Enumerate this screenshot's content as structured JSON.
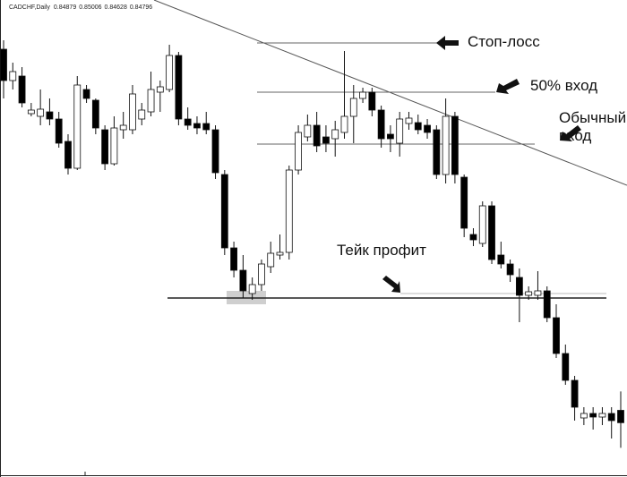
{
  "chart_data": {
    "type": "candlestick",
    "title": "CADCHF,Daily",
    "ylim": [
      0.84432,
      0.8763
    ],
    "up_color": "#ffffff",
    "down_color": "#000000",
    "open": [
      0.873,
      0.8709,
      0.8712,
      0.86868,
      0.8685,
      0.8688,
      0.86832,
      0.86682,
      0.86502,
      0.8703,
      0.86958,
      0.8676,
      0.86532,
      0.8676,
      0.8676,
      0.86832,
      0.8688,
      0.87012,
      0.8703,
      0.87258,
      0.86832,
      0.86802,
      0.86802,
      0.8676,
      0.8646,
      0.85968,
      0.85818,
      0.85662,
      0.85722,
      0.85842,
      0.8592,
      0.85938,
      0.8649,
      0.86712,
      0.8679,
      0.86712,
      0.867,
      0.86742,
      0.8685,
      0.8697,
      0.87012,
      0.86892,
      0.8673,
      0.8667,
      0.86802,
      0.86808,
      0.8679,
      0.8676,
      0.8646,
      0.8685,
      0.86442,
      0.86058,
      0.85998,
      0.8625,
      0.8592,
      0.8586,
      0.8577,
      0.8565,
      0.8565,
      0.8568,
      0.855,
      0.8526,
      0.8508,
      0.84828,
      0.84858,
      0.84834,
      0.84858,
      0.84879
    ],
    "high": [
      0.8736,
      0.8721,
      0.8718,
      0.8694,
      0.8703,
      0.8697,
      0.8688,
      0.8673,
      0.8712,
      0.8706,
      0.8697,
      0.8679,
      0.8685,
      0.8688,
      0.8706,
      0.8694,
      0.8715,
      0.8709,
      0.8733,
      0.87282,
      0.8691,
      0.8685,
      0.8688,
      0.8679,
      0.8649,
      0.8601,
      0.8592,
      0.8577,
      0.8589,
      0.8601,
      0.86058,
      0.8652,
      0.8679,
      0.86862,
      0.8688,
      0.8679,
      0.8682,
      0.87288,
      0.8706,
      0.87042,
      0.87042,
      0.86922,
      0.8679,
      0.8688,
      0.8688,
      0.86862,
      0.86832,
      0.8679,
      0.8697,
      0.8688,
      0.8646,
      0.861,
      0.8628,
      0.8628,
      0.8601,
      0.8589,
      0.8583,
      0.8571,
      0.85812,
      0.8571,
      0.8559,
      0.8532,
      0.8511,
      0.849,
      0.849,
      0.849,
      0.849,
      0.85006
    ],
    "low": [
      0.8697,
      0.8703,
      0.8691,
      0.8685,
      0.8679,
      0.8679,
      0.8664,
      0.8646,
      0.8649,
      0.8694,
      0.8673,
      0.8649,
      0.8652,
      0.867,
      0.8673,
      0.8679,
      0.8685,
      0.8688,
      0.87012,
      0.8679,
      0.8676,
      0.8673,
      0.8673,
      0.8643,
      0.8592,
      0.8577,
      0.85632,
      0.8562,
      0.8568,
      0.858,
      0.8589,
      0.8589,
      0.8646,
      0.86682,
      0.8661,
      0.8661,
      0.8658,
      0.867,
      0.8667,
      0.8694,
      0.8685,
      0.8664,
      0.8661,
      0.8658,
      0.8676,
      0.8673,
      0.867,
      0.8643,
      0.864,
      0.864,
      0.8604,
      0.8598,
      0.85974,
      0.8586,
      0.8583,
      0.8574,
      0.8547,
      0.8562,
      0.8562,
      0.8547,
      0.8523,
      0.8505,
      0.8481,
      0.8478,
      0.8475,
      0.8478,
      0.8469,
      0.84628
    ],
    "close": [
      0.8709,
      0.8715,
      0.8694,
      0.86892,
      0.86898,
      0.86832,
      0.8667,
      0.86502,
      0.8706,
      0.8697,
      0.86772,
      0.86532,
      0.86772,
      0.8679,
      0.87,
      0.86892,
      0.8703,
      0.87048,
      0.87258,
      0.86832,
      0.8679,
      0.86772,
      0.8676,
      0.86472,
      0.85968,
      0.85818,
      0.8568,
      0.85722,
      0.8586,
      0.85932,
      0.85938,
      0.8649,
      0.86742,
      0.8679,
      0.86652,
      0.8667,
      0.8676,
      0.8685,
      0.8697,
      0.87012,
      0.86892,
      0.867,
      0.867,
      0.86832,
      0.86838,
      0.8676,
      0.86742,
      0.8646,
      0.8685,
      0.8646,
      0.861,
      0.86022,
      0.8625,
      0.8589,
      0.8586,
      0.85788,
      0.8565,
      0.85674,
      0.8568,
      0.855,
      0.8526,
      0.8508,
      0.849,
      0.84858,
      0.84834,
      0.84858,
      0.8481,
      0.84796
    ],
    "levels": [
      {
        "label": "Стоп-лосс",
        "value": 0.87342
      },
      {
        "label": "50% вход",
        "value": 0.87012
      },
      {
        "label": "Обычный вход",
        "value": 0.86664
      },
      {
        "label": "Тейк профит",
        "value": 0.85632
      }
    ]
  }
}
